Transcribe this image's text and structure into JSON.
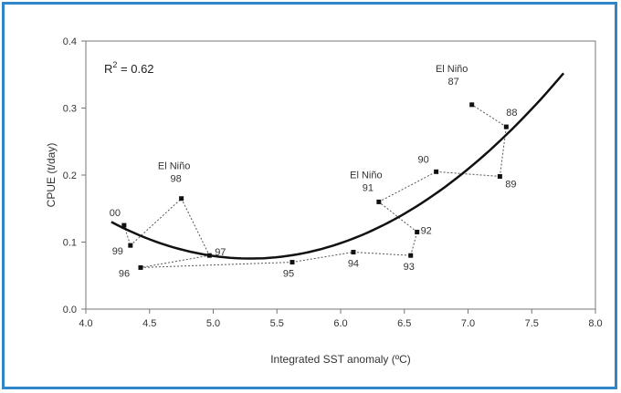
{
  "colors": {
    "frame_border": "#2f86c8",
    "curve": "#111111",
    "points": "#111111",
    "dotted_lines": "#555555",
    "plot_border": "#777777"
  },
  "chart_data": {
    "type": "scatter",
    "title": "",
    "xlabel": "Integrated SST anomaly (ºC)",
    "ylabel": "CPUE (t/day)",
    "xlim": [
      4.0,
      8.0
    ],
    "ylim": [
      0.0,
      0.4
    ],
    "x_ticks": [
      "4.0",
      "4.5",
      "5.0",
      "5.5",
      "6.0",
      "6.5",
      "7.0",
      "7.5",
      "8.0"
    ],
    "y_ticks": [
      "0.0",
      "0.1",
      "0.2",
      "0.3",
      "0.4"
    ],
    "grid": false,
    "annotation": {
      "text": "R",
      "sup": "2",
      "rest": " = 0.62"
    },
    "points": [
      {
        "label": "00",
        "x": 4.3,
        "y": 0.125
      },
      {
        "label": "99",
        "x": 4.35,
        "y": 0.095
      },
      {
        "label": "98",
        "x": 4.75,
        "y": 0.165,
        "tag": "El Niño"
      },
      {
        "label": "97",
        "x": 4.97,
        "y": 0.08
      },
      {
        "label": "96",
        "x": 4.43,
        "y": 0.062
      },
      {
        "label": "95",
        "x": 5.62,
        "y": 0.07
      },
      {
        "label": "94",
        "x": 6.1,
        "y": 0.085
      },
      {
        "label": "93",
        "x": 6.55,
        "y": 0.08
      },
      {
        "label": "92",
        "x": 6.6,
        "y": 0.115
      },
      {
        "label": "91",
        "x": 6.3,
        "y": 0.16,
        "tag": "El Niño"
      },
      {
        "label": "90",
        "x": 6.75,
        "y": 0.205
      },
      {
        "label": "89",
        "x": 7.25,
        "y": 0.198
      },
      {
        "label": "88",
        "x": 7.3,
        "y": 0.272
      },
      {
        "label": "87",
        "x": 7.03,
        "y": 0.305,
        "tag": "El Niño"
      }
    ],
    "trend": {
      "type": "quadratic",
      "x_start": 4.2,
      "x_end": 7.75,
      "points": [
        {
          "x": 4.2,
          "y": 0.13
        },
        {
          "x": 5.4,
          "y": 0.076
        },
        {
          "x": 7.75,
          "y": 0.352
        }
      ]
    }
  }
}
